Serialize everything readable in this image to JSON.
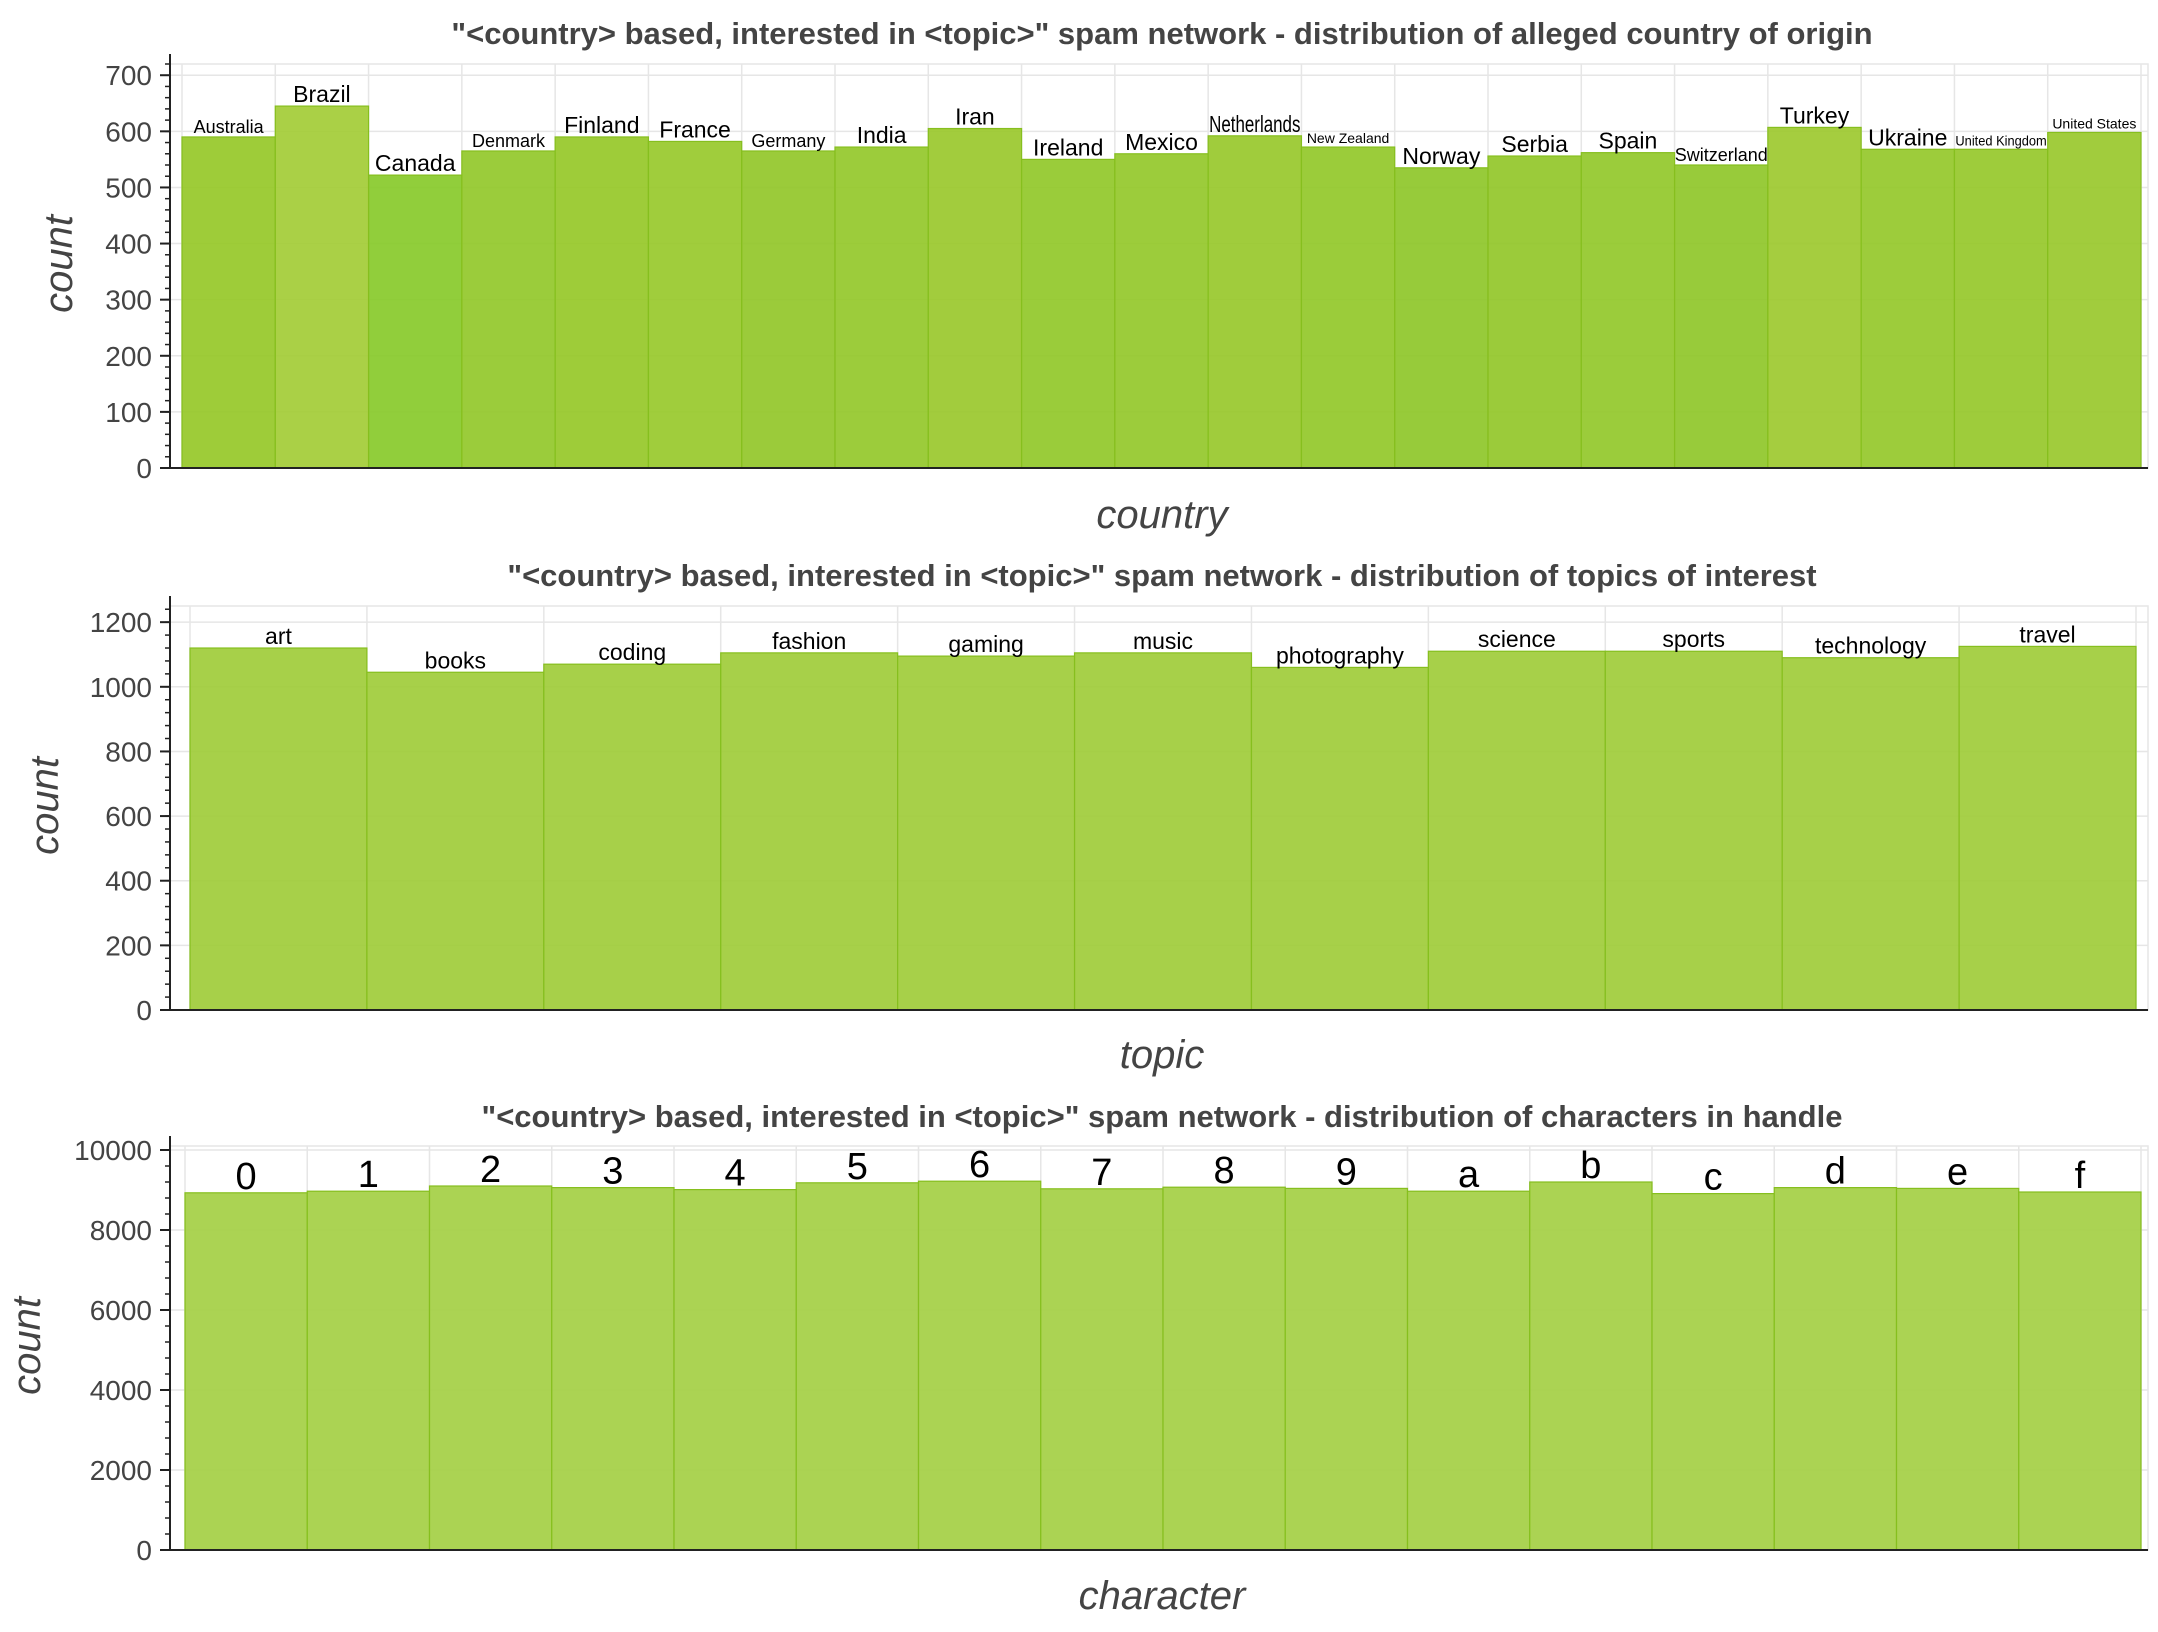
{
  "chart_data": [
    {
      "type": "bar",
      "title": "\"<country> based, interested in <topic>\" spam network - distribution of alleged country of origin",
      "xlabel": "country",
      "ylabel": "count",
      "ylim": [
        0,
        720
      ],
      "yticks": [
        0,
        100,
        200,
        300,
        400,
        500,
        600,
        700
      ],
      "categories": [
        "Australia",
        "Brazil",
        "Canada",
        "Denmark",
        "Finland",
        "France",
        "Germany",
        "India",
        "Iran",
        "Ireland",
        "Mexico",
        "Netherlands",
        "New Zealand",
        "Norway",
        "Serbia",
        "Spain",
        "Switzerland",
        "Turkey",
        "Ukraine",
        "United Kingdom",
        "United States"
      ],
      "values": [
        590,
        645,
        522,
        565,
        590,
        582,
        565,
        572,
        605,
        550,
        560,
        592,
        572,
        535,
        556,
        562,
        540,
        607,
        568,
        568,
        598
      ],
      "grid": true,
      "legend": "none",
      "bar_color": "#8fc31f",
      "bar_colors": [
        "#96c828",
        "#a3cc36",
        "#88ca2a",
        "#93c82a",
        "#96c828",
        "#98c92b",
        "#92c729",
        "#94c82a",
        "#9ac82c",
        "#91c829",
        "#94c82a",
        "#98c82b",
        "#93c829",
        "#8ec729",
        "#92c729",
        "#93c82a",
        "#8fc729",
        "#9dc92f",
        "#95c82a",
        "#96c82a",
        "#99c82c"
      ],
      "label_sizes": [
        "small",
        "medium",
        "medium",
        "small",
        "medium",
        "medium",
        "small",
        "medium",
        "medium",
        "medium",
        "medium",
        "medium",
        "tiny",
        "medium",
        "medium",
        "medium",
        "small",
        "medium",
        "medium",
        "tiny",
        "tiny"
      ]
    },
    {
      "type": "bar",
      "title": "\"<country> based, interested in <topic>\" spam network - distribution of topics of interest",
      "xlabel": "topic",
      "ylabel": "count",
      "ylim": [
        0,
        1250
      ],
      "yticks": [
        0,
        200,
        400,
        600,
        800,
        1000,
        1200
      ],
      "categories": [
        "art",
        "books",
        "coding",
        "fashion",
        "gaming",
        "music",
        "photography",
        "science",
        "sports",
        "technology",
        "travel"
      ],
      "values": [
        1120,
        1045,
        1070,
        1105,
        1095,
        1105,
        1060,
        1110,
        1110,
        1090,
        1125
      ],
      "grid": true,
      "legend": "none",
      "bar_color": "#a0cc3a",
      "bar_colors": [
        "#a0cc3a",
        "#a0cc3a",
        "#a0cc3a",
        "#a0cc3a",
        "#a0cc3a",
        "#a0cc3a",
        "#a0cc3a",
        "#a0cc3a",
        "#a0cc3a",
        "#a0cc3a",
        "#a0cc3a"
      ],
      "label_sizes": [
        "medium",
        "medium",
        "medium",
        "medium",
        "medium",
        "medium",
        "medium",
        "medium",
        "medium",
        "medium",
        "medium"
      ]
    },
    {
      "type": "bar",
      "title": "\"<country> based, interested in <topic>\" spam network - distribution of characters in handle",
      "xlabel": "character",
      "ylabel": "count",
      "ylim": [
        0,
        10100
      ],
      "yticks": [
        0,
        2000,
        4000,
        6000,
        8000,
        10000
      ],
      "categories": [
        "0",
        "1",
        "2",
        "3",
        "4",
        "5",
        "6",
        "7",
        "8",
        "9",
        "a",
        "b",
        "c",
        "d",
        "e",
        "f"
      ],
      "values": [
        8930,
        8970,
        9100,
        9060,
        9010,
        9180,
        9220,
        9030,
        9070,
        9040,
        8970,
        9200,
        8910,
        9060,
        9040,
        8950
      ],
      "grid": true,
      "legend": "none",
      "bar_color": "#a4cf44",
      "bar_colors": [
        "#a4cf44",
        "#a4cf44",
        "#a4cf44",
        "#a4cf44",
        "#a4cf44",
        "#a4cf44",
        "#a4cf44",
        "#a4cf44",
        "#a4cf44",
        "#a4cf44",
        "#a4cf44",
        "#a4cf44",
        "#a4cf44",
        "#a4cf44",
        "#a4cf44",
        "#a4cf44"
      ],
      "label_sizes": [
        "large",
        "large",
        "large",
        "large",
        "large",
        "large",
        "large",
        "large",
        "large",
        "large",
        "large",
        "large",
        "large",
        "large",
        "large",
        "large"
      ]
    }
  ]
}
